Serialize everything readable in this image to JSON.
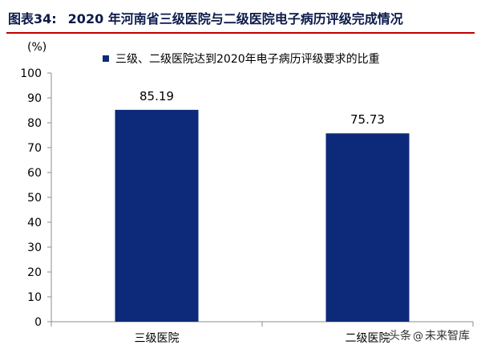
{
  "figure": {
    "number": "图表34:",
    "title": "2020 年河南省三级医院与二级医院电子病历评级完成情况"
  },
  "watermark": {
    "prefix": "头条",
    "icon": "at-icon",
    "name": "未来智库"
  },
  "colors": {
    "bar": "#0d2a7a",
    "axis": "#8c8c8c",
    "title": "#0b1a4a",
    "rule": "#c00000"
  },
  "chart_data": {
    "type": "bar",
    "title": "",
    "ylabel": "(%)",
    "xlabel": "",
    "categories": [
      "三级医院",
      "二级医院"
    ],
    "series": [
      {
        "name": "三级、二级医院达到2020年电子病历评级要求的比重",
        "values": [
          85.19,
          75.73
        ],
        "value_labels": [
          "85.19",
          "75.73"
        ]
      }
    ],
    "ylim": [
      0,
      100
    ],
    "yticks": [
      0,
      10,
      20,
      30,
      40,
      50,
      60,
      70,
      80,
      90,
      100
    ],
    "grid": false,
    "legend_position": "top"
  }
}
